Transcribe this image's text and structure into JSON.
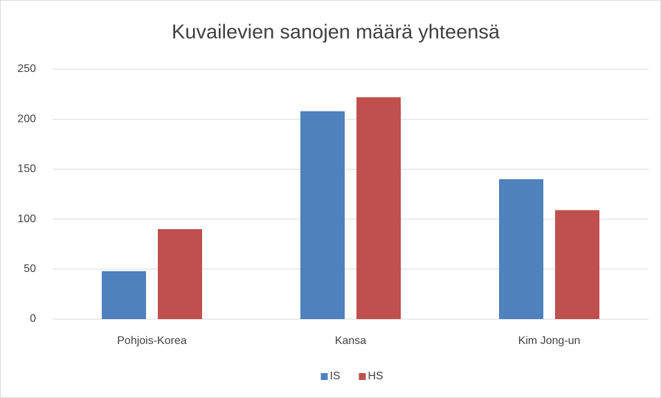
{
  "chart_data": {
    "type": "bar",
    "title": "Kuvailevien sanojen määrä yhteensä",
    "categories": [
      "Pohjois-Korea",
      "Kansa",
      "Kim Jong-un"
    ],
    "series": [
      {
        "name": "IS",
        "color": "#4f81bd",
        "values": [
          48,
          208,
          140
        ]
      },
      {
        "name": "HS",
        "color": "#c0504d",
        "values": [
          90,
          222,
          109
        ]
      }
    ],
    "ylim": [
      0,
      250
    ],
    "yticks": [
      0,
      50,
      100,
      150,
      200,
      250
    ],
    "grid": true,
    "legend": "bottom"
  }
}
